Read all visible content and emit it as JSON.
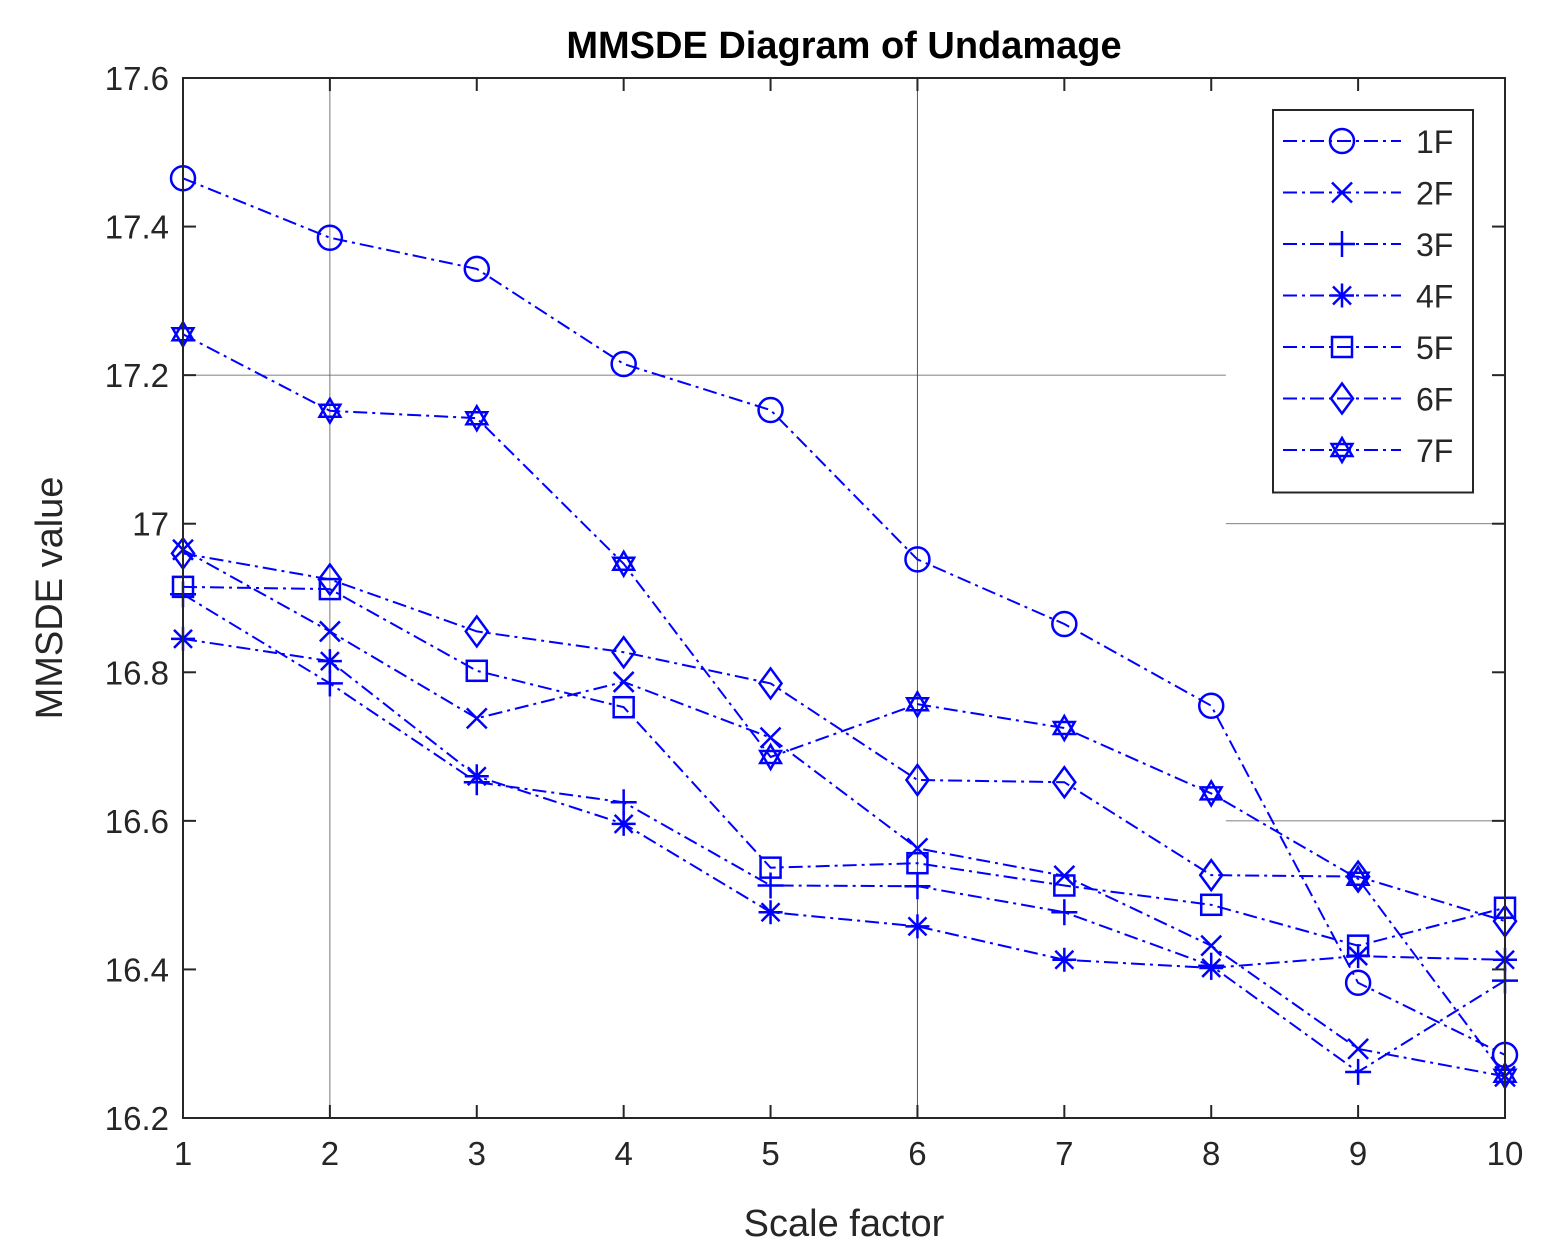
{
  "chart_data": {
    "type": "line",
    "title": "MMSDE Diagram of Undamage",
    "xlabel": "Scale factor",
    "ylabel": "MMSDE value",
    "xlim": [
      1,
      10
    ],
    "ylim": [
      16.2,
      17.6
    ],
    "x": [
      1,
      2,
      3,
      4,
      5,
      6,
      7,
      8,
      9,
      10
    ],
    "x_ticks": [
      "1",
      "2",
      "3",
      "4",
      "5",
      "6",
      "7",
      "8",
      "9",
      "10"
    ],
    "y_ticks": [
      "16.2",
      "16.4",
      "16.6",
      "16.8",
      "17",
      "17.2",
      "17.4",
      "17.6"
    ],
    "y_tick_values": [
      16.2,
      16.4,
      16.6,
      16.8,
      17.0,
      17.2,
      17.4,
      17.6
    ],
    "legend_position": "top-right",
    "line_style": "dash-dot",
    "color": "#0000ff",
    "series": [
      {
        "name": "1F",
        "marker": "circle",
        "values": [
          17.465,
          17.385,
          17.343,
          17.215,
          17.153,
          16.952,
          16.865,
          16.755,
          16.382,
          16.285
        ]
      },
      {
        "name": "2F",
        "marker": "x",
        "values": [
          16.965,
          16.855,
          16.738,
          16.787,
          16.712,
          16.563,
          16.526,
          16.432,
          16.293,
          16.256
        ]
      },
      {
        "name": "3F",
        "marker": "plus",
        "values": [
          16.905,
          16.785,
          16.652,
          16.625,
          16.513,
          16.512,
          16.477,
          16.405,
          16.262,
          16.385
        ]
      },
      {
        "name": "4F",
        "marker": "star",
        "values": [
          16.845,
          16.815,
          16.66,
          16.596,
          16.477,
          16.458,
          16.413,
          16.402,
          16.418,
          16.413
        ]
      },
      {
        "name": "5F",
        "marker": "square",
        "values": [
          16.915,
          16.912,
          16.802,
          16.753,
          16.537,
          16.543,
          16.513,
          16.487,
          16.432,
          16.483
        ]
      },
      {
        "name": "6F",
        "marker": "diamond",
        "values": [
          16.96,
          16.925,
          16.855,
          16.827,
          16.785,
          16.655,
          16.652,
          16.527,
          16.525,
          16.465
        ]
      },
      {
        "name": "7F",
        "marker": "hexagram",
        "values": [
          17.255,
          17.152,
          17.142,
          16.946,
          16.686,
          16.757,
          16.725,
          16.637,
          16.522,
          16.257
        ]
      }
    ]
  }
}
